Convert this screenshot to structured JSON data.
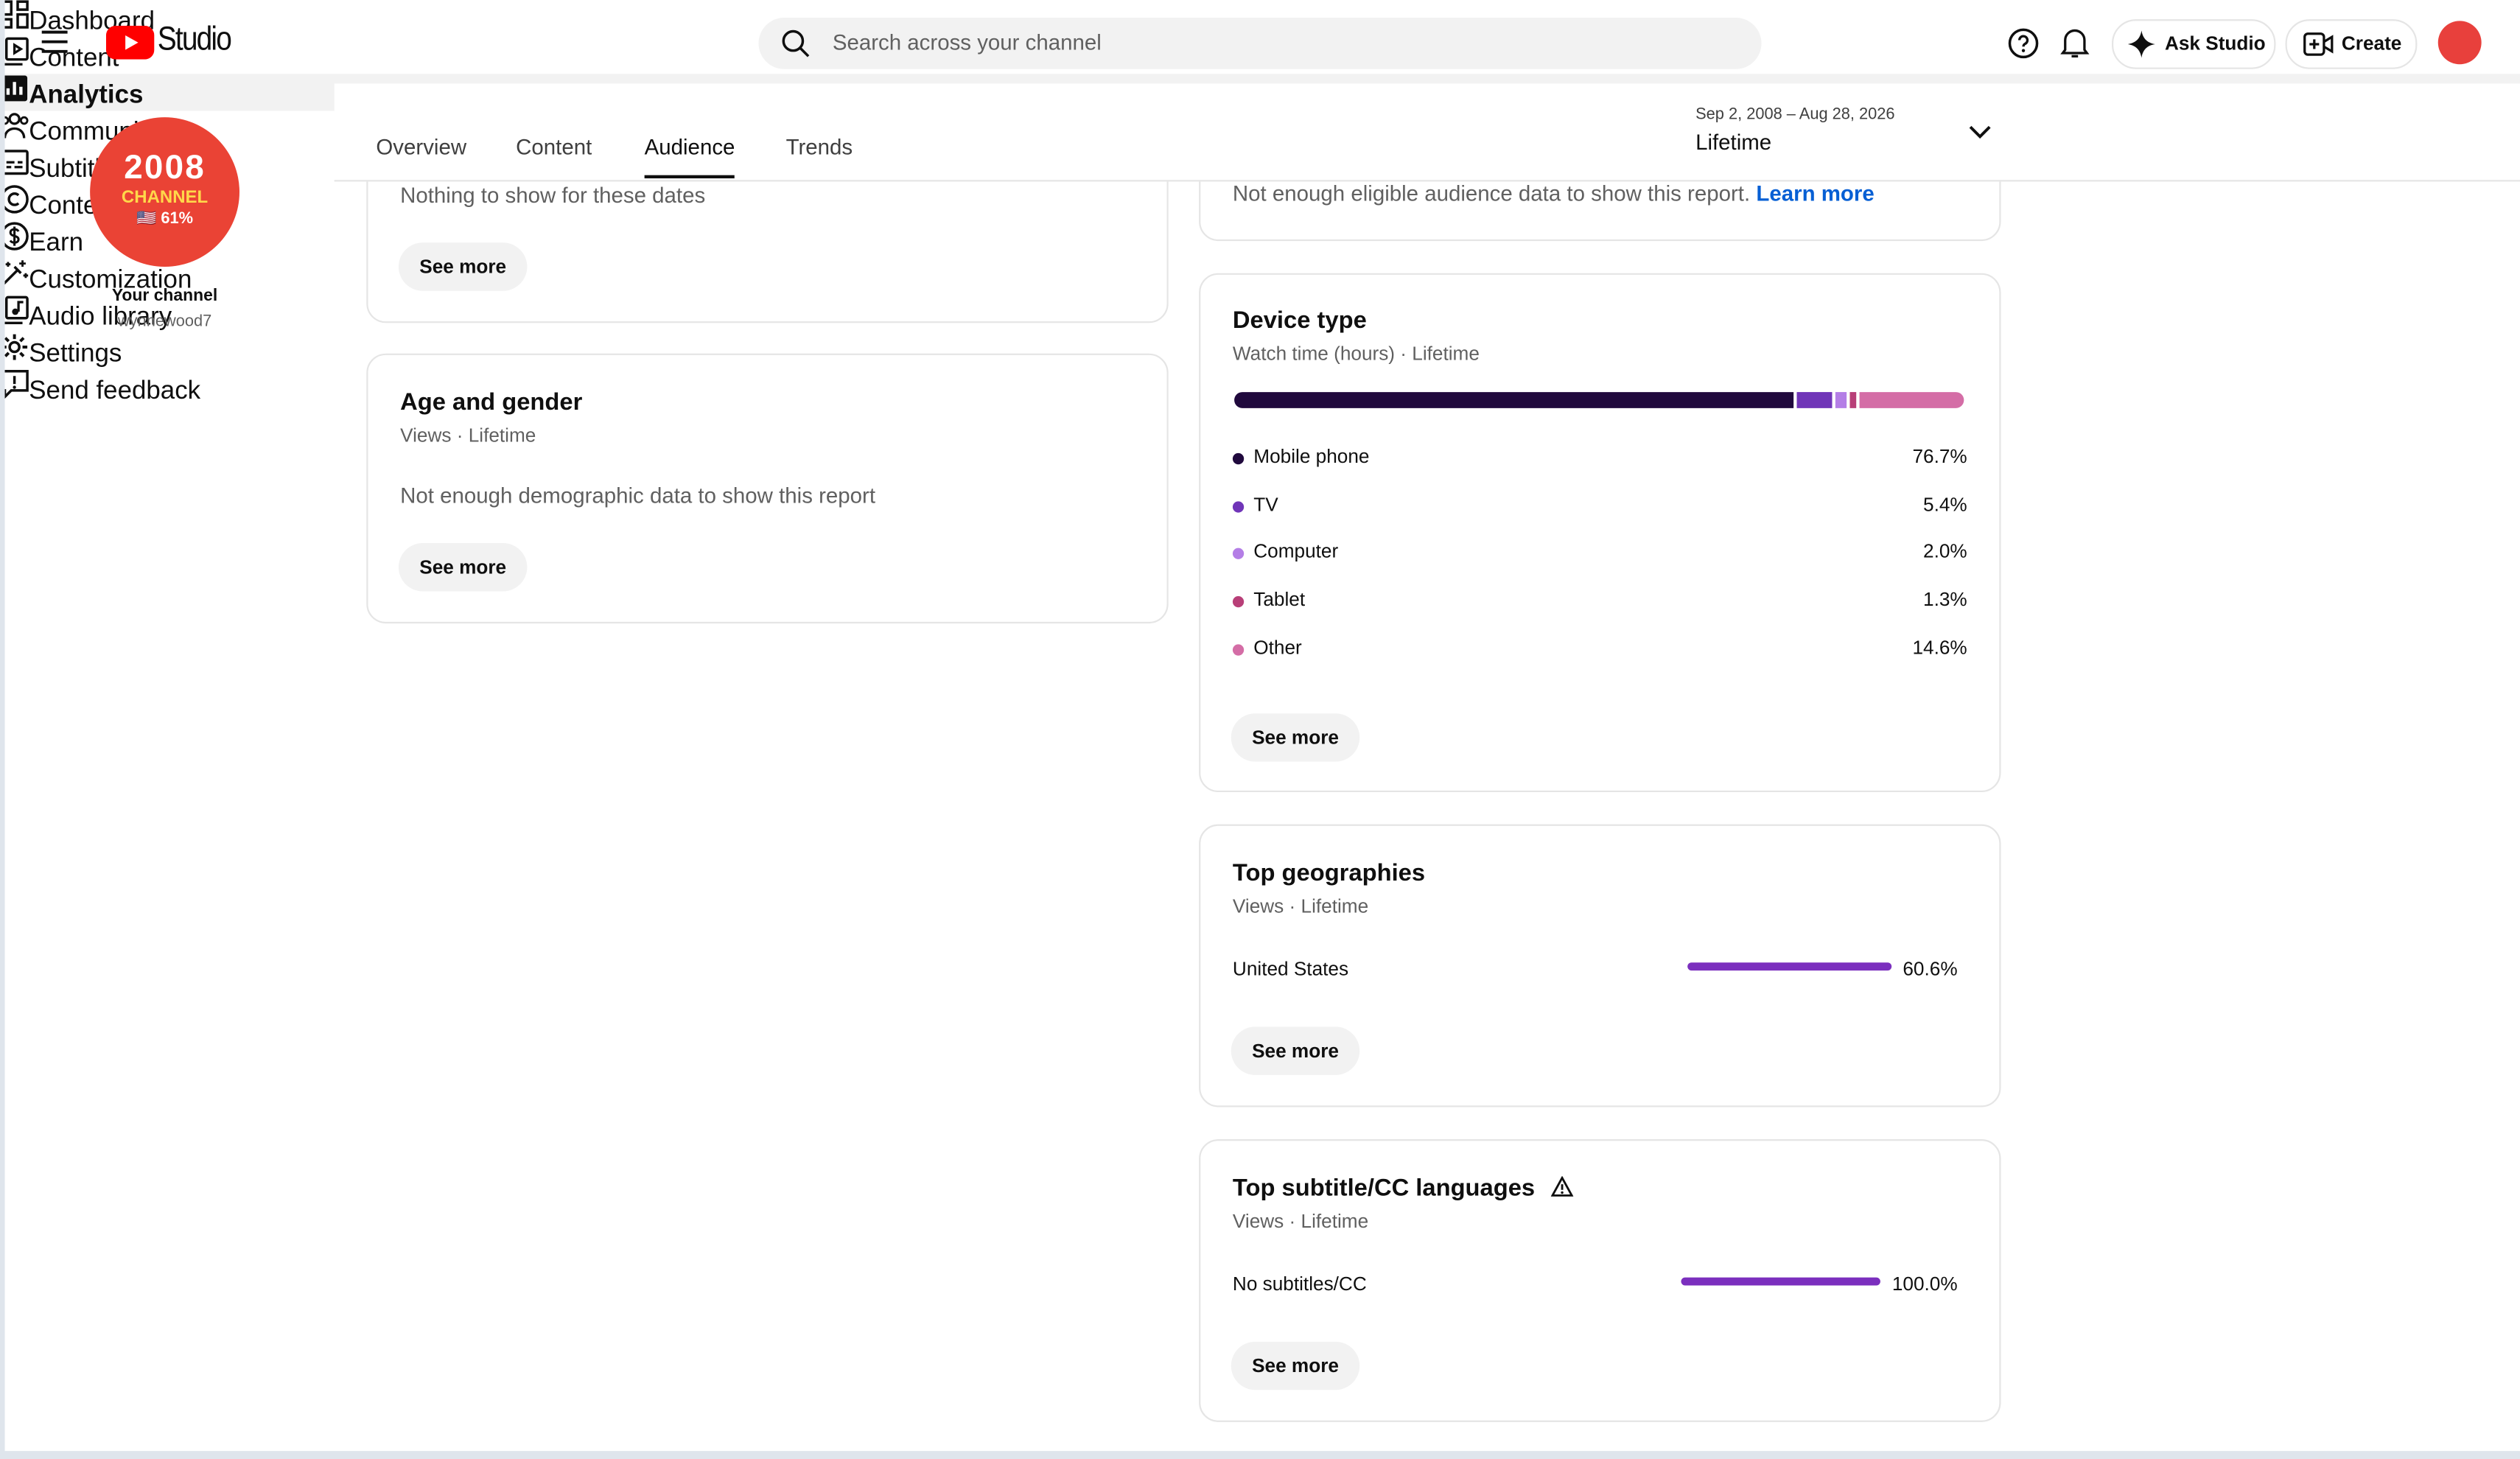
{
  "header": {
    "logo_text": "Studio",
    "search_placeholder": "Search across your channel",
    "ask_studio": "Ask Studio",
    "create": "Create"
  },
  "sidebar": {
    "avatar": {
      "line1": "2008",
      "line2": "CHANNEL",
      "line3": "🇺🇸 61%"
    },
    "channel_label": "Your channel",
    "handle": "wynnewood7",
    "nav": [
      "Dashboard",
      "Content",
      "Analytics",
      "Community",
      "Subtitles",
      "Content detection",
      "Earn",
      "Customization",
      "Audio library"
    ],
    "active": "Analytics",
    "bottom": [
      "Settings",
      "Send feedback"
    ]
  },
  "tabs": {
    "items": [
      "Overview",
      "Content",
      "Audience",
      "Trends"
    ],
    "active": "Audience"
  },
  "date_range": {
    "range": "Sep 2, 2008 – Aug 28, 2026",
    "label": "Lifetime"
  },
  "left_cards": [
    {
      "message": "Nothing to show for these dates",
      "button": "See more"
    },
    {
      "title": "Age and gender",
      "subtitle": "Views · Lifetime",
      "message": "Not enough demographic data to show this report",
      "button": "See more"
    }
  ],
  "top_card": {
    "message": "Not enough eligible audience data to show this report.",
    "link": "Learn more"
  },
  "device_type": {
    "title": "Device type",
    "subtitle": "Watch time (hours) · Lifetime",
    "button": "See more",
    "items": [
      {
        "name": "Mobile phone",
        "value": 76.7,
        "label": "76.7%",
        "color": "#20093d"
      },
      {
        "name": "TV",
        "value": 5.4,
        "label": "5.4%",
        "color": "#7035b8"
      },
      {
        "name": "Computer",
        "value": 2.0,
        "label": "2.0%",
        "color": "#b47ee6"
      },
      {
        "name": "Tablet",
        "value": 1.3,
        "label": "1.3%",
        "color": "#b83f78"
      },
      {
        "name": "Other",
        "value": 14.6,
        "label": "14.6%",
        "color": "#d46da6"
      }
    ]
  },
  "top_geographies": {
    "title": "Top geographies",
    "subtitle": "Views · Lifetime",
    "button": "See more",
    "items": [
      {
        "name": "United States",
        "value": 60.6,
        "label": "60.6%"
      }
    ]
  },
  "top_subtitles": {
    "title": "Top subtitle/CC languages",
    "subtitle": "Views · Lifetime",
    "button": "See more",
    "items": [
      {
        "name": "No subtitles/CC",
        "value": 100.0,
        "label": "100.0%"
      }
    ]
  }
}
